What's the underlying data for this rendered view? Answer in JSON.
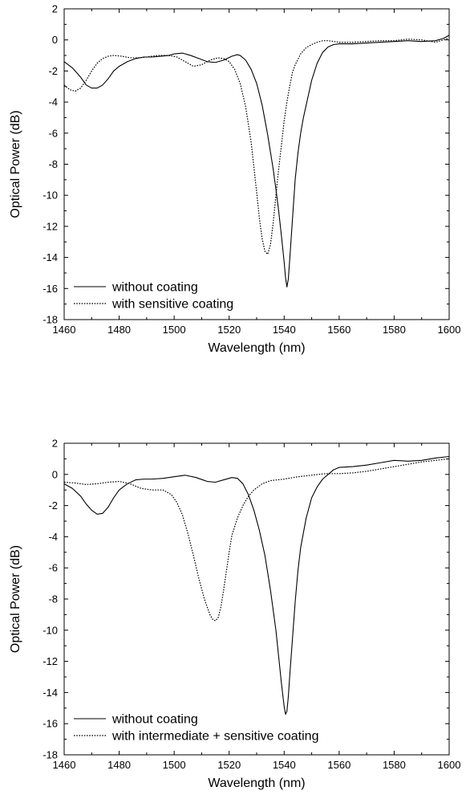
{
  "chart_data": [
    {
      "type": "line",
      "xlabel": "Wavelength (nm)",
      "ylabel": "Optical Power (dB)",
      "xlim": [
        1460,
        1600
      ],
      "ylim": [
        -18,
        2
      ],
      "xticks": [
        1460,
        1480,
        1500,
        1520,
        1540,
        1560,
        1580,
        1600
      ],
      "yticks": [
        2,
        0,
        -2,
        -4,
        -6,
        -8,
        -10,
        -12,
        -14,
        -16,
        -18
      ],
      "legend_position": "bottom-left",
      "series": [
        {
          "name": "without coating",
          "style": "solid",
          "color": "#000000",
          "x": [
            1460,
            1463,
            1466,
            1468,
            1470,
            1472,
            1474,
            1476,
            1478,
            1480,
            1483,
            1486,
            1489,
            1492,
            1495,
            1498,
            1500,
            1503,
            1506,
            1509,
            1512,
            1515,
            1518,
            1521,
            1523,
            1524,
            1526,
            1528,
            1530,
            1532,
            1534,
            1536,
            1537,
            1538,
            1539,
            1540,
            1540.5,
            1541,
            1541.5,
            1542,
            1543,
            1544,
            1545,
            1546,
            1547,
            1548,
            1550,
            1552,
            1554,
            1556,
            1558,
            1560,
            1565,
            1570,
            1575,
            1580,
            1585,
            1590,
            1595,
            1598,
            1600
          ],
          "y": [
            -1.4,
            -1.8,
            -2.4,
            -2.9,
            -3.1,
            -3.1,
            -2.9,
            -2.5,
            -2.0,
            -1.7,
            -1.4,
            -1.2,
            -1.1,
            -1.1,
            -1.05,
            -1.0,
            -0.9,
            -0.85,
            -1.0,
            -1.2,
            -1.4,
            -1.45,
            -1.3,
            -1.05,
            -0.95,
            -1.0,
            -1.3,
            -1.9,
            -2.8,
            -4.2,
            -6.1,
            -8.3,
            -9.6,
            -11.0,
            -12.6,
            -14.3,
            -15.3,
            -15.9,
            -15.4,
            -14.2,
            -11.6,
            -9.0,
            -7.3,
            -6.0,
            -5.0,
            -4.2,
            -2.6,
            -1.5,
            -0.8,
            -0.45,
            -0.3,
            -0.25,
            -0.25,
            -0.2,
            -0.15,
            -0.1,
            -0.05,
            -0.1,
            -0.05,
            0.1,
            0.3
          ]
        },
        {
          "name": "with sensitive coating",
          "style": "dotted",
          "color": "#000000",
          "x": [
            1460,
            1462,
            1464,
            1466,
            1468,
            1470,
            1472,
            1474,
            1476,
            1478,
            1481,
            1484,
            1487,
            1490,
            1494,
            1498,
            1501,
            1504,
            1507,
            1510,
            1513,
            1516,
            1518,
            1520,
            1522,
            1524,
            1526,
            1528,
            1529,
            1530,
            1531,
            1532,
            1533,
            1534,
            1535,
            1536,
            1537,
            1538,
            1539,
            1540,
            1541,
            1542,
            1543,
            1544,
            1546,
            1548,
            1550,
            1552,
            1554,
            1556,
            1560,
            1565,
            1570,
            1575,
            1580,
            1585,
            1590,
            1595,
            1600
          ],
          "y": [
            -2.9,
            -3.2,
            -3.3,
            -3.1,
            -2.6,
            -2.0,
            -1.5,
            -1.2,
            -1.05,
            -1.0,
            -1.05,
            -1.15,
            -1.15,
            -1.1,
            -1.0,
            -1.0,
            -1.1,
            -1.4,
            -1.7,
            -1.6,
            -1.3,
            -1.15,
            -1.2,
            -1.4,
            -1.9,
            -2.8,
            -4.3,
            -6.6,
            -8.2,
            -9.8,
            -11.5,
            -12.8,
            -13.6,
            -13.8,
            -13.2,
            -11.8,
            -10.0,
            -8.3,
            -6.8,
            -5.2,
            -4.0,
            -3.0,
            -2.1,
            -1.6,
            -0.9,
            -0.5,
            -0.3,
            -0.15,
            -0.05,
            -0.05,
            -0.15,
            -0.15,
            -0.1,
            -0.05,
            -0.05,
            0.05,
            0.0,
            -0.15,
            0.1
          ]
        }
      ]
    },
    {
      "type": "line",
      "xlabel": "Wavelength (nm)",
      "ylabel": "Optical Power (dB)",
      "xlim": [
        1460,
        1600
      ],
      "ylim": [
        -18,
        2
      ],
      "xticks": [
        1460,
        1480,
        1500,
        1520,
        1540,
        1560,
        1580,
        1600
      ],
      "yticks": [
        2,
        0,
        -2,
        -4,
        -6,
        -8,
        -10,
        -12,
        -14,
        -16,
        -18
      ],
      "legend_position": "bottom-left",
      "series": [
        {
          "name": "without coating",
          "style": "solid",
          "color": "#000000",
          "x": [
            1460,
            1463,
            1466,
            1468,
            1470,
            1472,
            1474,
            1476,
            1478,
            1480,
            1483,
            1486,
            1489,
            1492,
            1496,
            1500,
            1504,
            1508,
            1512,
            1515,
            1518,
            1521,
            1523,
            1525,
            1527,
            1529,
            1531,
            1533,
            1535,
            1537,
            1538,
            1539,
            1540,
            1540.5,
            1541,
            1541.5,
            1542,
            1543,
            1544,
            1545,
            1546,
            1548,
            1550,
            1552,
            1554,
            1556,
            1558,
            1560,
            1565,
            1570,
            1575,
            1580,
            1585,
            1590,
            1595,
            1600
          ],
          "y": [
            -0.6,
            -0.9,
            -1.4,
            -1.9,
            -2.3,
            -2.55,
            -2.5,
            -2.1,
            -1.5,
            -1.0,
            -0.6,
            -0.35,
            -0.3,
            -0.3,
            -0.25,
            -0.15,
            -0.05,
            -0.2,
            -0.45,
            -0.5,
            -0.35,
            -0.2,
            -0.25,
            -0.6,
            -1.3,
            -2.3,
            -3.6,
            -5.2,
            -7.4,
            -10.0,
            -11.7,
            -13.4,
            -14.9,
            -15.4,
            -15.2,
            -14.3,
            -13.0,
            -10.6,
            -8.2,
            -6.2,
            -4.7,
            -2.8,
            -1.5,
            -0.8,
            -0.3,
            0.0,
            0.3,
            0.45,
            0.5,
            0.6,
            0.75,
            0.9,
            0.85,
            0.9,
            1.05,
            1.15
          ]
        },
        {
          "name": "with intermediate + sensitive coating",
          "style": "dotted",
          "color": "#000000",
          "x": [
            1460,
            1464,
            1468,
            1472,
            1476,
            1480,
            1484,
            1488,
            1492,
            1496,
            1499,
            1501,
            1503,
            1505,
            1507,
            1509,
            1511,
            1513,
            1514,
            1515,
            1516,
            1517,
            1518,
            1519,
            1520,
            1521,
            1523,
            1525,
            1527,
            1529,
            1532,
            1535,
            1540,
            1545,
            1550,
            1555,
            1560,
            1565,
            1570,
            1575,
            1580,
            1585,
            1590,
            1595,
            1600
          ],
          "y": [
            -0.5,
            -0.55,
            -0.65,
            -0.6,
            -0.5,
            -0.45,
            -0.6,
            -0.9,
            -1.0,
            -1.0,
            -1.3,
            -1.8,
            -2.6,
            -3.8,
            -5.2,
            -6.7,
            -8.0,
            -9.0,
            -9.3,
            -9.4,
            -9.2,
            -8.5,
            -7.4,
            -6.2,
            -5.0,
            -3.9,
            -2.8,
            -2.0,
            -1.4,
            -1.0,
            -0.6,
            -0.4,
            -0.3,
            -0.15,
            -0.05,
            0.05,
            0.05,
            0.1,
            0.2,
            0.35,
            0.5,
            0.65,
            0.8,
            0.9,
            1.0
          ]
        }
      ]
    }
  ]
}
